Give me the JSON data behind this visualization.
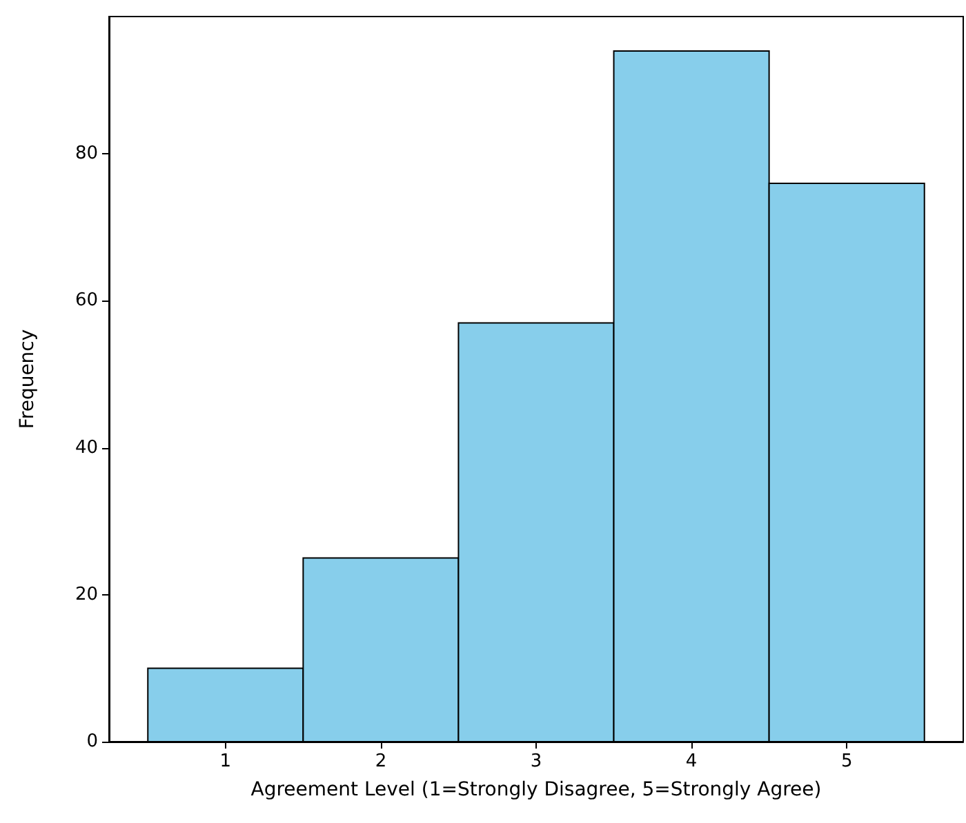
{
  "chart_data": {
    "type": "histogram",
    "xlabel": "Agreement Level (1=Strongly Disagree, 5=Strongly Agree)",
    "ylabel": "Frequency",
    "bins": [
      0.5,
      1.5,
      2.5,
      3.5,
      4.5,
      5.5
    ],
    "values": [
      10,
      25,
      57,
      94,
      76
    ],
    "color": "#87ceeb",
    "xlim": [
      0.25,
      5.75
    ],
    "xticks": [
      1,
      2,
      3,
      4,
      5
    ],
    "ylim": [
      0,
      98.7
    ],
    "yticks": [
      0,
      20,
      40,
      60,
      80
    ],
    "grid": false
  }
}
